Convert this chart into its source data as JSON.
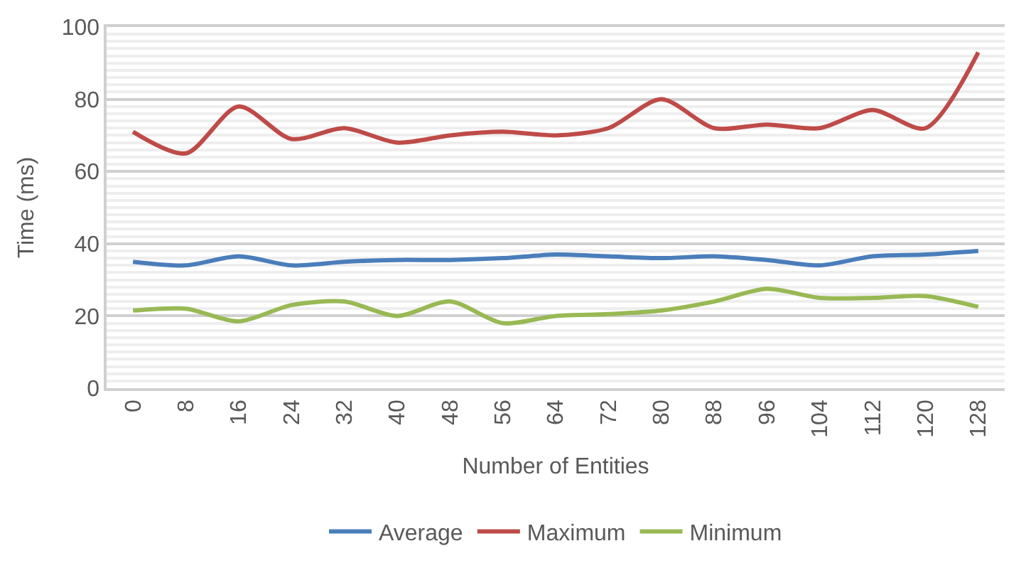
{
  "chart_data": {
    "type": "line",
    "xlabel": "Number of Entities",
    "ylabel": "Time (ms)",
    "categories": [
      "0",
      "8",
      "16",
      "24",
      "32",
      "40",
      "48",
      "56",
      "64",
      "72",
      "80",
      "88",
      "96",
      "104",
      "112",
      "120",
      "128"
    ],
    "series": [
      {
        "name": "Average",
        "color": "#4a7ebb",
        "values": [
          35,
          34,
          36.5,
          34,
          35,
          35.5,
          35.5,
          36,
          37,
          36.5,
          36,
          36.5,
          35.5,
          34,
          36.5,
          37,
          38
        ]
      },
      {
        "name": "Maximum",
        "color": "#be4b48",
        "values": [
          71,
          65,
          78,
          69,
          72,
          68,
          70,
          71,
          70,
          72,
          80,
          72,
          73,
          72,
          77,
          72,
          93
        ]
      },
      {
        "name": "Minimum",
        "color": "#98b954",
        "values": [
          21.5,
          22,
          18.5,
          23,
          24,
          20,
          24,
          18,
          20,
          20.5,
          21.5,
          24,
          27.5,
          25,
          25,
          25.5,
          22.5
        ]
      }
    ],
    "ylim": [
      0,
      100
    ],
    "yticks": [
      0,
      20,
      40,
      60,
      80,
      100
    ],
    "grid": "y",
    "legend": "bottom",
    "marker": "none",
    "line_style": "solid"
  }
}
